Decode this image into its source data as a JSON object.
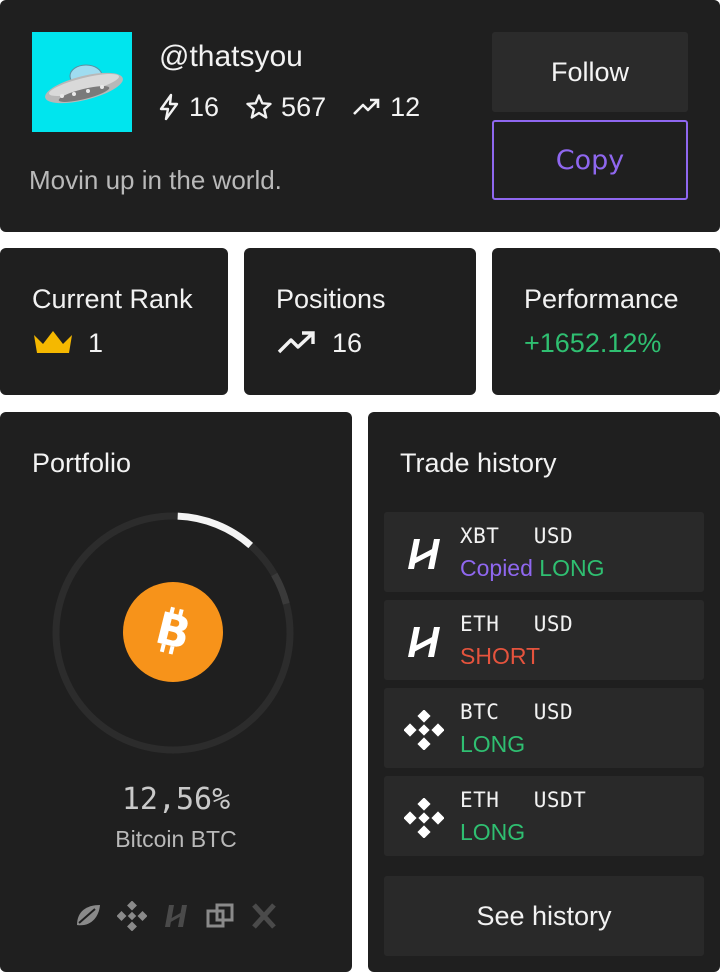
{
  "profile": {
    "handle": "@thatsyou",
    "stats": {
      "trades": "16",
      "stars": "567",
      "copiers": "12"
    },
    "bio": "Movin up in the world.",
    "follow_label": "Follow",
    "copy_label": "Copy"
  },
  "metrics": {
    "rank_label": "Current Rank",
    "rank_value": "1",
    "positions_label": "Positions",
    "positions_value": "16",
    "performance_label": "Performance",
    "performance_value": "+1652.12%"
  },
  "portfolio": {
    "title": "Portfolio",
    "share_fraction": 0.1256,
    "share_text": "12,56%",
    "coin_name": "Bitcoin BTC",
    "exchanges": [
      "bitfinex-icon",
      "binance-icon",
      "bitmex-icon",
      "bittrex-icon",
      "kraken-icon"
    ]
  },
  "history": {
    "title": "Trade history",
    "trades": [
      {
        "pair": "XBT  USD",
        "copied": "Copied",
        "side": "LONG",
        "exchange": "bitmex"
      },
      {
        "pair": "ETH  USD",
        "copied": "",
        "side": "SHORT",
        "exchange": "bitmex"
      },
      {
        "pair": "BTC  USD",
        "copied": "",
        "side": "LONG",
        "exchange": "binance"
      },
      {
        "pair": "ETH  USDT",
        "copied": "",
        "side": "LONG",
        "exchange": "binance"
      }
    ],
    "see_history_label": "See history"
  },
  "colors": {
    "accent_purple": "#8f67ef",
    "long_green": "#2fbf71",
    "short_red": "#e5533d",
    "avatar_bg": "#00e5ee",
    "bitcoin_orange": "#f7931a",
    "crown_yellow": "#f5b800"
  }
}
